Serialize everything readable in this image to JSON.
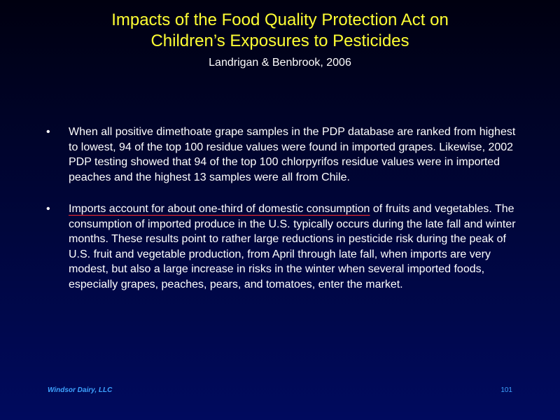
{
  "slide": {
    "title_line1": "Impacts of the Food Quality Protection Act on",
    "title_line2": "Children’s Exposures to Pesticides",
    "subtitle": "Landrigan & Benbrook, 2006",
    "bullet_marker": "•",
    "bullets": [
      {
        "text": "When all positive dimethoate grape samples in the PDP database are ranked from highest to lowest, 94 of the top 100 residue values were found in imported grapes. Likewise, 2002 PDP testing showed that 94 of the top 100 chlorpyrifos residue values were in imported peaches and the highest 13 samples were all from Chile."
      },
      {
        "underlined_text": "Imports account for about one-third of domestic consumption",
        "rest_text": " of fruits and vegetables. The consumption of imported produce in the U.S. typically occurs during the late fall and winter months. These results point to rather large reductions in pesticide risk during the peak of U.S. fruit and vegetable production, from April through late fall, when imports are very modest, but also a large increase in risks in the winter when several imported foods, especially grapes, peaches, pears, and tomatoes, enter the market."
      }
    ],
    "footer_left": "Windsor Dairy, LLC",
    "page_number": "101"
  },
  "colors": {
    "title": "#ffff33",
    "body_text": "#ffffff",
    "footer": "#3da3ff",
    "underline": "#ff2a2a"
  }
}
